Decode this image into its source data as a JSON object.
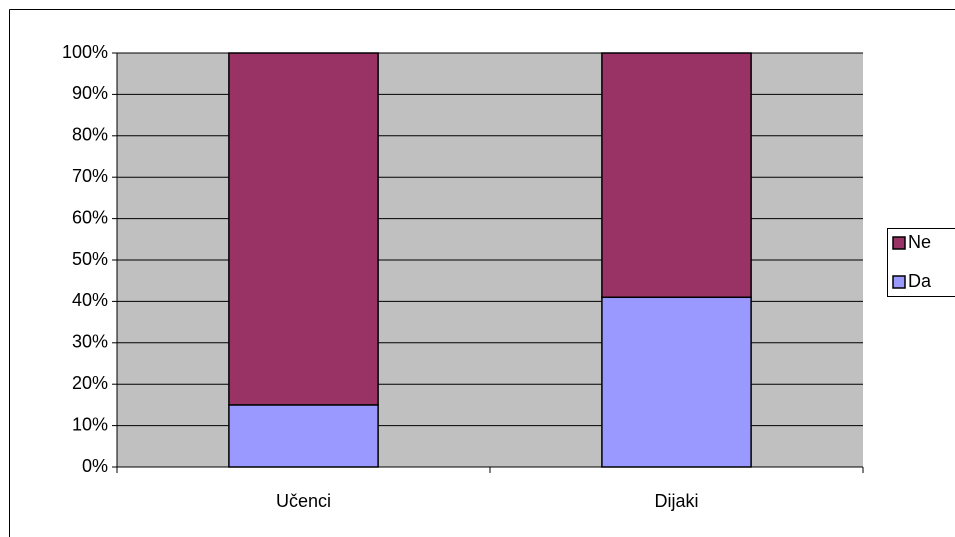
{
  "chart_data": {
    "type": "stacked_bar",
    "categories": [
      "Učenci",
      "Dijaki"
    ],
    "series": [
      {
        "name": "Da",
        "color": "#9999ff",
        "values": [
          15,
          41
        ]
      },
      {
        "name": "Ne",
        "color": "#993366",
        "values": [
          85,
          59
        ]
      }
    ],
    "ylim": [
      0,
      100
    ],
    "yticks": [
      {
        "value": 0,
        "label": "0%"
      },
      {
        "value": 10,
        "label": "10%"
      },
      {
        "value": 20,
        "label": "20%"
      },
      {
        "value": 30,
        "label": "30%"
      },
      {
        "value": 40,
        "label": "40%"
      },
      {
        "value": 50,
        "label": "50%"
      },
      {
        "value": 60,
        "label": "60%"
      },
      {
        "value": 70,
        "label": "70%"
      },
      {
        "value": 80,
        "label": "80%"
      },
      {
        "value": 90,
        "label": "90%"
      },
      {
        "value": 100,
        "label": "100%"
      }
    ],
    "grid": true,
    "legend": "right",
    "plot_background": "#c0c0c0"
  }
}
